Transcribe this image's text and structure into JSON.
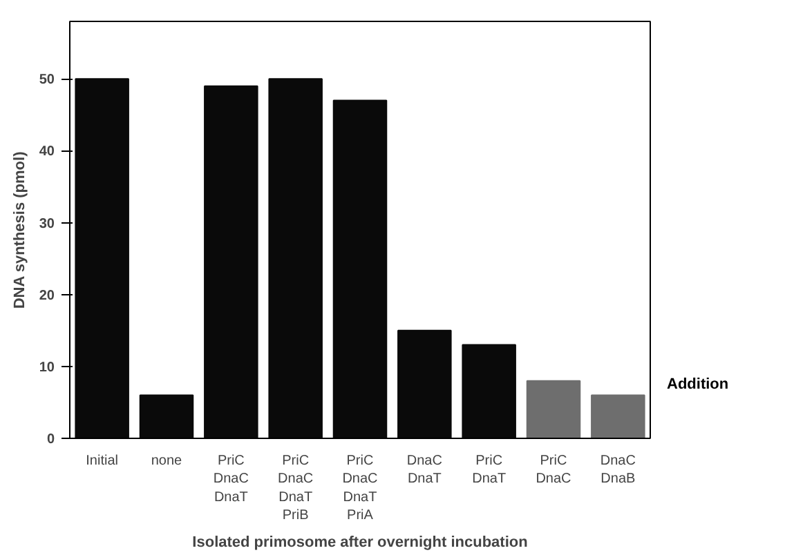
{
  "chart_data": {
    "type": "bar",
    "categories": [
      "Initial",
      "none",
      "PriC\nDnaC\nDnaT\n",
      "PriC\nDnaC\nDnaT\nPriB",
      "PriC\nDnaC\nDnaT\nPriA",
      "DnaC\nDnaT",
      "PriC\nDnaT",
      "PriC\nDnaC",
      "DnaC\nDnaB"
    ],
    "values": [
      50,
      6,
      49,
      50,
      47,
      15,
      13,
      8,
      6
    ],
    "colors": [
      "#0a0a0a",
      "#0a0a0a",
      "#0a0a0a",
      "#0a0a0a",
      "#0a0a0a",
      "#0a0a0a",
      "#0a0a0a",
      "#6e6e6e",
      "#6e6e6e"
    ],
    "ylabel": "DNA synthesis (pmol)",
    "xlabel": "Isolated primosome after overnight incubation",
    "annotations": [
      "Addition"
    ],
    "ylim": [
      0,
      58
    ],
    "yticks": [
      0,
      10,
      20,
      30,
      40,
      50
    ],
    "grid": false
  }
}
